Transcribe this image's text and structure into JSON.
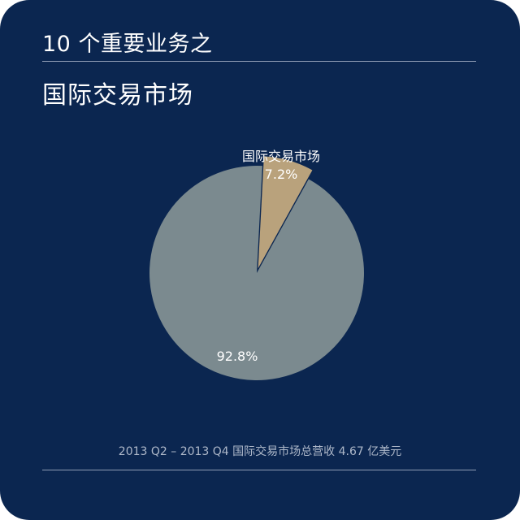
{
  "header": {
    "title": "10 个重要业务之",
    "subtitle": "国际交易市场"
  },
  "footer": {
    "note": "2013 Q2 – 2013 Q4 国际交易市场总营收 4.67 亿美元"
  },
  "colors": {
    "background": "#0b2650",
    "slice_highlight": "#b9a27c",
    "slice_rest": "#7b8a8f"
  },
  "chart_data": {
    "type": "pie",
    "title": "",
    "slices": [
      {
        "label": "国际交易市场",
        "value": 7.2,
        "value_label": "7.2%",
        "color": "#b9a27c",
        "exploded": true
      },
      {
        "label": "",
        "value": 92.8,
        "value_label": "92.8%",
        "color": "#7b8a8f",
        "exploded": false
      }
    ]
  }
}
